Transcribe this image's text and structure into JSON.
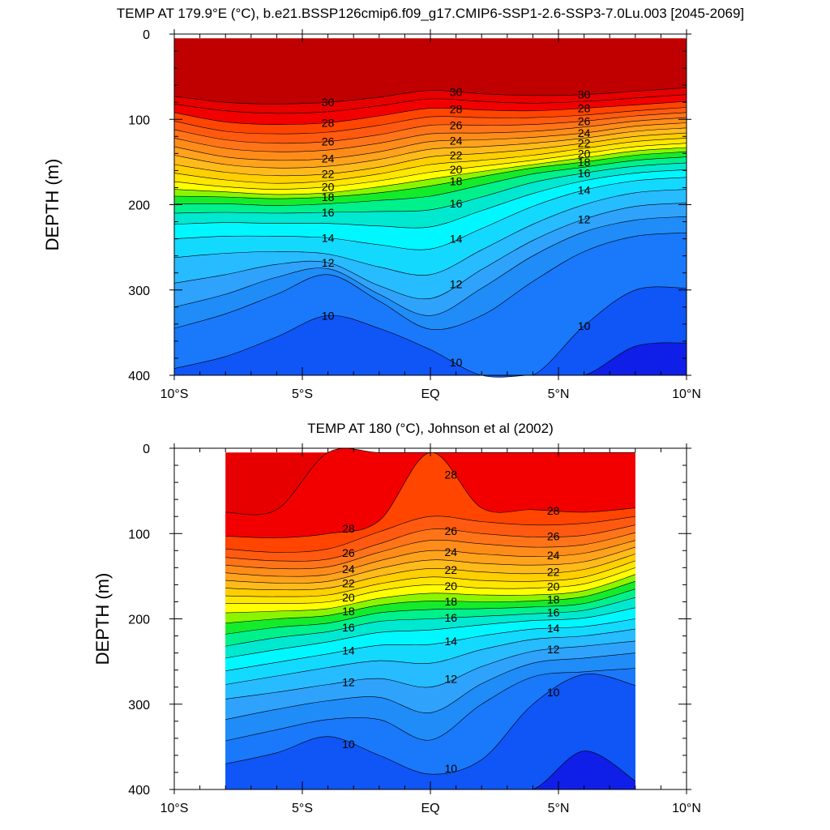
{
  "chart_data": [
    {
      "type": "contour",
      "title": "TEMP AT 179.9°E (°C), b.e21.BSSP126cmip6.f09_g17.CMIP6-SSP1-2.6-SSP3-7.0Lu.003 [2045-2069]",
      "ylabel": "DEPTH (m)",
      "xlim": [
        -10,
        10
      ],
      "ylim": [
        0,
        400
      ],
      "y_reversed": true,
      "x_ticks": [
        "10°S",
        "5°S",
        "EQ",
        "5°N",
        "10°N"
      ],
      "y_ticks": [
        "0",
        "100",
        "200",
        "300",
        "400"
      ],
      "data_extent_x": [
        -10,
        10
      ],
      "data_extent_y": [
        5,
        400
      ],
      "x": [
        -10,
        -8,
        -6,
        -4,
        -2,
        0,
        2,
        4,
        6,
        8,
        10
      ],
      "levels": [
        {
          "value": 30,
          "label": "30",
          "depths": [
            73,
            80,
            82,
            80,
            74,
            66,
            70,
            72,
            71,
            67,
            63
          ]
        },
        {
          "value": 29,
          "label": "",
          "depths": [
            82,
            90,
            93,
            91,
            84,
            76,
            79,
            81,
            79,
            75,
            71
          ]
        },
        {
          "value": 28,
          "label": "28",
          "depths": [
            92,
            103,
            106,
            104,
            96,
            87,
            89,
            90,
            87,
            83,
            79
          ]
        },
        {
          "value": 27,
          "label": "",
          "depths": [
            102,
            114,
            117,
            115,
            107,
            97,
            98,
            98,
            95,
            90,
            86
          ]
        },
        {
          "value": 26,
          "label": "26",
          "depths": [
            112,
            124,
            128,
            126,
            118,
            107,
            107,
            106,
            102,
            96,
            92
          ]
        },
        {
          "value": 25,
          "label": "",
          "depths": [
            122,
            134,
            138,
            136,
            128,
            117,
            116,
            114,
            109,
            102,
            98
          ]
        },
        {
          "value": 24,
          "label": "24",
          "depths": [
            132,
            144,
            148,
            146,
            138,
            126,
            124,
            121,
            116,
            108,
            104
          ]
        },
        {
          "value": 23,
          "label": "",
          "depths": [
            142,
            153,
            157,
            155,
            147,
            135,
            132,
            128,
            122,
            114,
            110
          ]
        },
        {
          "value": 22,
          "label": "22",
          "depths": [
            153,
            162,
            166,
            164,
            156,
            144,
            140,
            135,
            128,
            120,
            116
          ]
        },
        {
          "value": 21,
          "label": "",
          "depths": [
            163,
            171,
            175,
            172,
            164,
            153,
            148,
            142,
            134,
            126,
            122
          ]
        },
        {
          "value": 20,
          "label": "20",
          "depths": [
            173,
            179,
            182,
            179,
            172,
            162,
            155,
            148,
            140,
            132,
            128
          ]
        },
        {
          "value": 19,
          "label": "",
          "depths": [
            182,
            185,
            188,
            186,
            179,
            170,
            161,
            153,
            145,
            137,
            133
          ]
        },
        {
          "value": 18,
          "label": "18",
          "depths": [
            190,
            191,
            193,
            191,
            186,
            178,
            167,
            157,
            150,
            142,
            138
          ]
        },
        {
          "value": 17,
          "label": "",
          "depths": [
            199,
            199,
            201,
            199,
            195,
            190,
            177,
            164,
            156,
            148,
            144
          ]
        },
        {
          "value": 16,
          "label": "16",
          "depths": [
            210,
            209,
            210,
            209,
            208,
            206,
            191,
            174,
            163,
            155,
            151
          ]
        },
        {
          "value": 15,
          "label": "",
          "depths": [
            223,
            221,
            222,
            222,
            225,
            226,
            207,
            187,
            172,
            163,
            159
          ]
        },
        {
          "value": 14,
          "label": "14",
          "depths": [
            240,
            237,
            237,
            239,
            247,
            252,
            228,
            202,
            183,
            172,
            168
          ]
        },
        {
          "value": 13,
          "label": "",
          "depths": [
            262,
            257,
            255,
            258,
            273,
            282,
            253,
            223,
            200,
            186,
            182
          ]
        },
        {
          "value": 12,
          "label": "12",
          "depths": [
            292,
            282,
            270,
            268,
            295,
            310,
            276,
            242,
            217,
            202,
            198
          ]
        },
        {
          "value": 11.5,
          "label": "",
          "depths": [
            320,
            305,
            285,
            275,
            305,
            330,
            298,
            260,
            232,
            218,
            214
          ]
        },
        {
          "value": 11,
          "label": "",
          "depths": [
            345,
            328,
            305,
            282,
            313,
            346,
            330,
            290,
            255,
            237,
            233
          ]
        },
        {
          "value": 10,
          "label": "10",
          "depths": [
            392,
            378,
            355,
            330,
            345,
            370,
            400,
            400,
            342,
            300,
            298
          ]
        },
        {
          "value": 9,
          "label": "",
          "depths": [
            400,
            400,
            400,
            400,
            400,
            400,
            400,
            400,
            400,
            366,
            362
          ]
        }
      ]
    },
    {
      "type": "contour",
      "title": "TEMP AT 180 (°C), Johnson et al (2002)",
      "ylabel": "DEPTH (m)",
      "xlim": [
        -10,
        10
      ],
      "ylim": [
        0,
        400
      ],
      "y_reversed": true,
      "x_ticks": [
        "10°S",
        "5°S",
        "EQ",
        "5°N",
        "10°N"
      ],
      "y_ticks": [
        "0",
        "100",
        "200",
        "300",
        "400"
      ],
      "data_extent_x": [
        -8,
        8
      ],
      "data_extent_y": [
        5,
        400
      ],
      "x": [
        -8,
        -6,
        -4,
        -2,
        0,
        2,
        4,
        6,
        8
      ],
      "levels": [
        {
          "value": 29,
          "label": "",
          "depths": [
            75,
            72,
            5,
            5,
            5,
            5,
            5,
            5,
            5
          ]
        },
        {
          "value": 28,
          "label": "28",
          "depths": [
            103,
            105,
            100,
            85,
            5,
            70,
            72,
            75,
            70
          ]
        },
        {
          "value": 27,
          "label": "",
          "depths": [
            118,
            122,
            118,
            98,
            80,
            86,
            90,
            88,
            80
          ]
        },
        {
          "value": 26,
          "label": "26",
          "depths": [
            128,
            132,
            130,
            112,
            95,
            100,
            104,
            102,
            90
          ]
        },
        {
          "value": 25,
          "label": "",
          "depths": [
            137,
            141,
            139,
            122,
            108,
            112,
            116,
            113,
            99
          ]
        },
        {
          "value": 24,
          "label": "24",
          "depths": [
            146,
            150,
            148,
            132,
            120,
            124,
            127,
            123,
            108
          ]
        },
        {
          "value": 23,
          "label": "",
          "depths": [
            155,
            158,
            156,
            141,
            131,
            135,
            137,
            133,
            116
          ]
        },
        {
          "value": 22,
          "label": "22",
          "depths": [
            164,
            166,
            164,
            150,
            141,
            145,
            147,
            142,
            124
          ]
        },
        {
          "value": 21,
          "label": "",
          "depths": [
            173,
            174,
            172,
            159,
            151,
            155,
            156,
            151,
            132
          ]
        },
        {
          "value": 20,
          "label": "20",
          "depths": [
            182,
            182,
            180,
            167,
            160,
            164,
            164,
            159,
            140
          ]
        },
        {
          "value": 19,
          "label": "",
          "depths": [
            193,
            191,
            188,
            176,
            170,
            172,
            172,
            167,
            148
          ]
        },
        {
          "value": 18,
          "label": "18",
          "depths": [
            205,
            200,
            196,
            184,
            179,
            180,
            179,
            174,
            156
          ]
        },
        {
          "value": 17,
          "label": "",
          "depths": [
            218,
            210,
            205,
            193,
            189,
            188,
            186,
            182,
            165
          ]
        },
        {
          "value": 16,
          "label": "16",
          "depths": [
            232,
            222,
            215,
            203,
            200,
            197,
            194,
            190,
            175
          ]
        },
        {
          "value": 15,
          "label": "",
          "depths": [
            246,
            236,
            227,
            216,
            213,
            207,
            202,
            199,
            187
          ]
        },
        {
          "value": 14,
          "label": "14",
          "depths": [
            261,
            251,
            241,
            231,
            230,
            220,
            212,
            209,
            200
          ]
        },
        {
          "value": 13,
          "label": "",
          "depths": [
            277,
            267,
            257,
            249,
            252,
            236,
            224,
            220,
            212
          ]
        },
        {
          "value": 12,
          "label": "12",
          "depths": [
            294,
            286,
            277,
            270,
            280,
            256,
            238,
            232,
            226
          ]
        },
        {
          "value": 11.5,
          "label": "",
          "depths": [
            318,
            306,
            296,
            292,
            310,
            276,
            252,
            246,
            240
          ]
        },
        {
          "value": 11,
          "label": "",
          "depths": [
            343,
            330,
            318,
            318,
            342,
            300,
            268,
            262,
            258
          ]
        },
        {
          "value": 10,
          "label": "10",
          "depths": [
            370,
            357,
            338,
            360,
            382,
            365,
            300,
            265,
            278
          ]
        },
        {
          "value": 9,
          "label": "",
          "depths": [
            400,
            400,
            400,
            400,
            400,
            400,
            400,
            355,
            390
          ]
        }
      ]
    }
  ]
}
